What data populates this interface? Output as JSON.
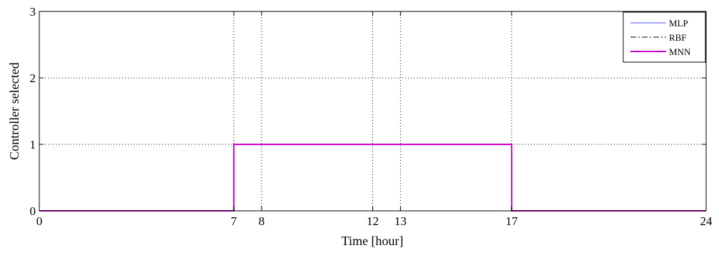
{
  "chart_data": {
    "type": "line",
    "title": "",
    "xlabel": "Time [hour]",
    "ylabel": "Controller selected",
    "xlim": [
      0,
      24
    ],
    "ylim": [
      0,
      3
    ],
    "xticks": [
      0,
      7,
      8,
      12,
      13,
      17,
      24
    ],
    "xtick_labels": [
      "0",
      "7",
      "8",
      "12",
      "13",
      "17",
      "24"
    ],
    "yticks": [
      0,
      1,
      2,
      3
    ],
    "ytick_labels": [
      "0",
      "1",
      "2",
      "3"
    ],
    "grid": true,
    "legend_position": "top-right",
    "series": [
      {
        "name": "MLP",
        "color": "#4a4aff",
        "style": "solid",
        "x": [
          0,
          7,
          7,
          17,
          17,
          24
        ],
        "y": [
          0,
          0,
          1,
          1,
          0,
          0
        ]
      },
      {
        "name": "RBF",
        "color": "#000000",
        "style": "dashdot",
        "x": [
          0,
          7,
          7,
          17,
          17,
          24
        ],
        "y": [
          0,
          0,
          1,
          1,
          0,
          0
        ]
      },
      {
        "name": "MNN",
        "color": "#cc00cc",
        "style": "solid",
        "x": [
          0,
          7,
          7,
          17,
          17,
          24
        ],
        "y": [
          0,
          0,
          1,
          1,
          0,
          0
        ]
      }
    ]
  }
}
